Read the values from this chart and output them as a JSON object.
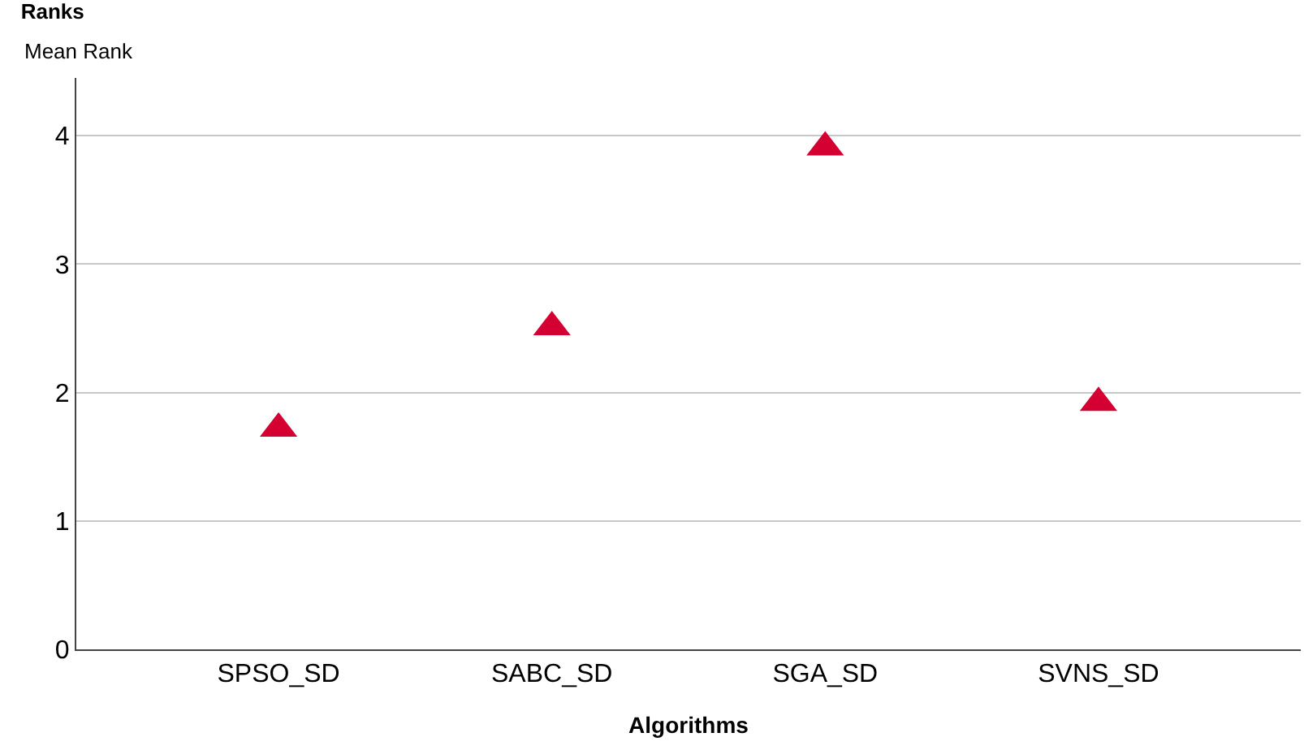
{
  "chart_data": {
    "type": "scatter",
    "title": "Ranks",
    "ylabel": "Mean Rank",
    "xlabel": "Algorithms",
    "categories": [
      "SPSO_SD",
      "SABC_SD",
      "SGA_SD",
      "SVNS_SD"
    ],
    "series": [
      {
        "color": "#d50032",
        "values": [
          1.72,
          2.51,
          3.91,
          1.92
        ]
      }
    ],
    "ylim": [
      0,
      4.45
    ],
    "yticks": [
      0,
      1,
      2,
      3,
      4
    ],
    "grid": "y",
    "legend": false,
    "marker": "triangle"
  }
}
